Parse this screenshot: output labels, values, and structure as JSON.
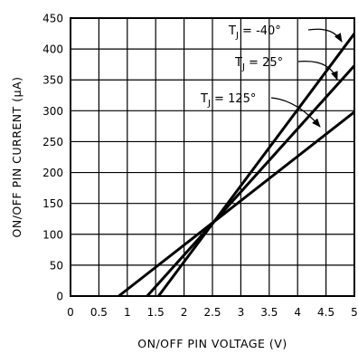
{
  "chart_data": {
    "type": "line",
    "title": "",
    "xlabel": "ON/OFF PIN VOLTAGE (V)",
    "ylabel": "ON/OFF PIN CURRENT (μA)",
    "xlim": [
      0,
      5
    ],
    "ylim": [
      0,
      450
    ],
    "x_ticks": [
      0,
      0.5,
      1,
      1.5,
      2,
      2.5,
      3,
      3.5,
      4,
      4.5,
      5
    ],
    "x_tick_labels": [
      "0",
      "0.5",
      "1",
      "1.5",
      "2",
      "2.5",
      "3",
      "3.5",
      "4",
      "4.5",
      "5"
    ],
    "y_ticks": [
      0,
      50,
      100,
      150,
      200,
      250,
      300,
      350,
      400,
      450
    ],
    "y_tick_labels": [
      "0",
      "50",
      "100",
      "150",
      "200",
      "250",
      "300",
      "350",
      "400",
      "450"
    ],
    "grid": true,
    "series": [
      {
        "name": "T_J = -40°",
        "label_main": "T",
        "label_sub": "J",
        "label_rest": " = -40°",
        "x": [
          1.55,
          5.0
        ],
        "y": [
          0,
          425
        ]
      },
      {
        "name": "T_J = 25°",
        "label_main": "T",
        "label_sub": "J",
        "label_rest": " = 25°",
        "x": [
          1.35,
          5.0
        ],
        "y": [
          0,
          373
        ]
      },
      {
        "name": "T_J = 125°",
        "label_main": "T",
        "label_sub": "J",
        "label_rest": " = 125°",
        "x": [
          0.85,
          5.0
        ],
        "y": [
          0,
          298
        ]
      }
    ]
  }
}
